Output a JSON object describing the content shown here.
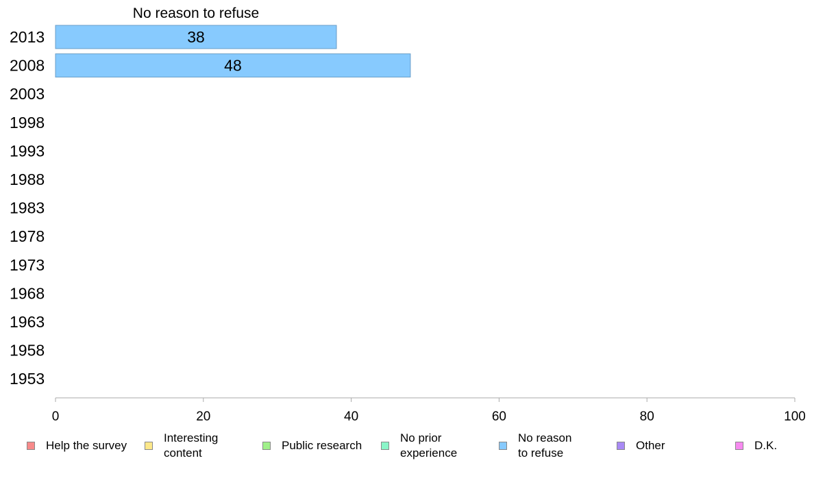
{
  "chart_data": {
    "type": "bar",
    "orientation": "horizontal",
    "title": "No reason to refuse",
    "categories": [
      "2013",
      "2008",
      "2003",
      "1998",
      "1993",
      "1988",
      "1983",
      "1978",
      "1973",
      "1968",
      "1963",
      "1958",
      "1953"
    ],
    "series": [
      {
        "name": "No reason to refuse",
        "color": "#87cafe",
        "values": [
          38,
          48,
          null,
          null,
          null,
          null,
          null,
          null,
          null,
          null,
          null,
          null,
          null
        ]
      }
    ],
    "xlim": [
      0,
      100
    ],
    "xticks": [
      "0",
      "20",
      "40",
      "60",
      "80",
      "100"
    ],
    "grid": false,
    "legend_position": "bottom"
  },
  "legend": [
    {
      "label": "Help the survey",
      "color": "#f78a8a"
    },
    {
      "label": "Interesting\ncontent",
      "color": "#fde88a"
    },
    {
      "label": "Public research",
      "color": "#a0f08a"
    },
    {
      "label": "No prior\nexperience",
      "color": "#8af5c8"
    },
    {
      "label": "No reason\nto refuse",
      "color": "#87cafe"
    },
    {
      "label": "Other",
      "color": "#a98af5"
    },
    {
      "label": "D.K.",
      "color": "#f78af0"
    }
  ]
}
